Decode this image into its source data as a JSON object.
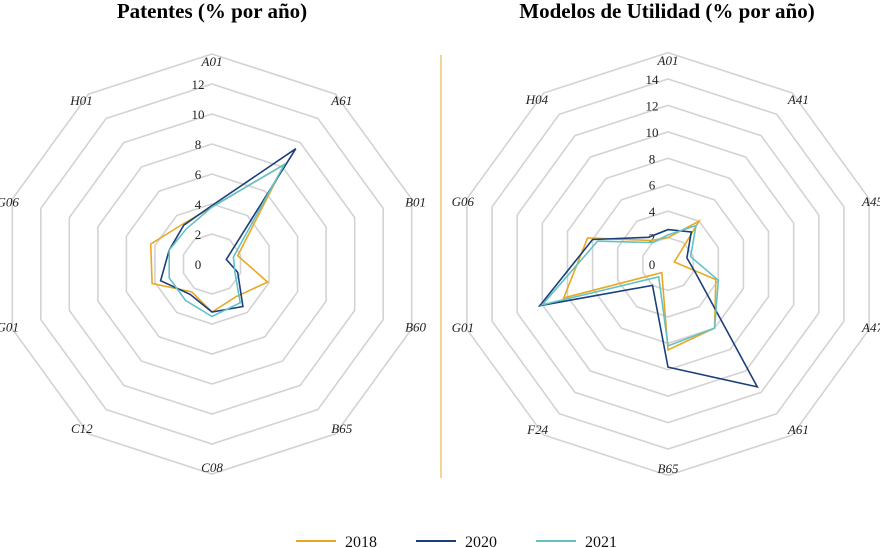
{
  "legend": [
    {
      "name": "2018",
      "color": "#E8A823"
    },
    {
      "name": "2020",
      "color": "#1B3F7A"
    },
    {
      "name": "2021",
      "color": "#62C2C6"
    }
  ],
  "colors": {
    "grid": "#d3d3d3",
    "divider": "#E8A823"
  },
  "chart_data": [
    {
      "type": "radar",
      "title": "Patentes (% por año)",
      "categories": [
        "A01",
        "A61",
        "B01",
        "B60",
        "B65",
        "C08",
        "C12",
        "G01",
        "G06",
        "H01"
      ],
      "rmax": 12,
      "ticks": [
        0,
        2,
        4,
        6,
        8,
        10,
        12
      ],
      "tick_labels": [
        "0",
        "2",
        "4",
        "6",
        "8",
        "10",
        "12"
      ],
      "series": [
        {
          "name": "2018",
          "values": [
            3.8,
            8.2,
            1.8,
            3.9,
            2.7,
            3.2,
            2.3,
            4.2,
            4.3,
            3.3
          ]
        },
        {
          "name": "2020",
          "values": [
            3.9,
            9.5,
            1.0,
            1.8,
            3.5,
            3.2,
            2.5,
            3.6,
            3.0,
            3.2
          ]
        },
        {
          "name": "2021",
          "values": [
            3.8,
            8.2,
            1.5,
            1.6,
            3.2,
            3.5,
            3.0,
            3.0,
            3.0,
            2.9
          ]
        }
      ]
    },
    {
      "type": "radar",
      "title": "Modelos de Utilidad (% por año)",
      "categories": [
        "A01",
        "A41",
        "A45",
        "A47",
        "A61",
        "B65",
        "F24",
        "G01",
        "G06",
        "H04"
      ],
      "rmax": 14,
      "ticks": [
        0,
        2,
        4,
        6,
        8,
        10,
        12,
        14
      ],
      "tick_labels": [
        "0",
        "2",
        "4",
        "6",
        "8",
        "10",
        "12",
        "14"
      ],
      "series": [
        {
          "name": "2018",
          "values": [
            2.0,
            4.0,
            0.5,
            3.8,
            6.0,
            6.5,
            0.8,
            8.3,
            6.4,
            2.2
          ]
        },
        {
          "name": "2020",
          "values": [
            2.6,
            3.0,
            1.5,
            2.2,
            11.5,
            7.8,
            2.0,
            10.2,
            6.0,
            2.5
          ]
        },
        {
          "name": "2021",
          "values": [
            2.2,
            3.6,
            1.8,
            4.0,
            6.0,
            6.2,
            1.2,
            10.0,
            5.6,
            2.0
          ]
        }
      ]
    }
  ]
}
